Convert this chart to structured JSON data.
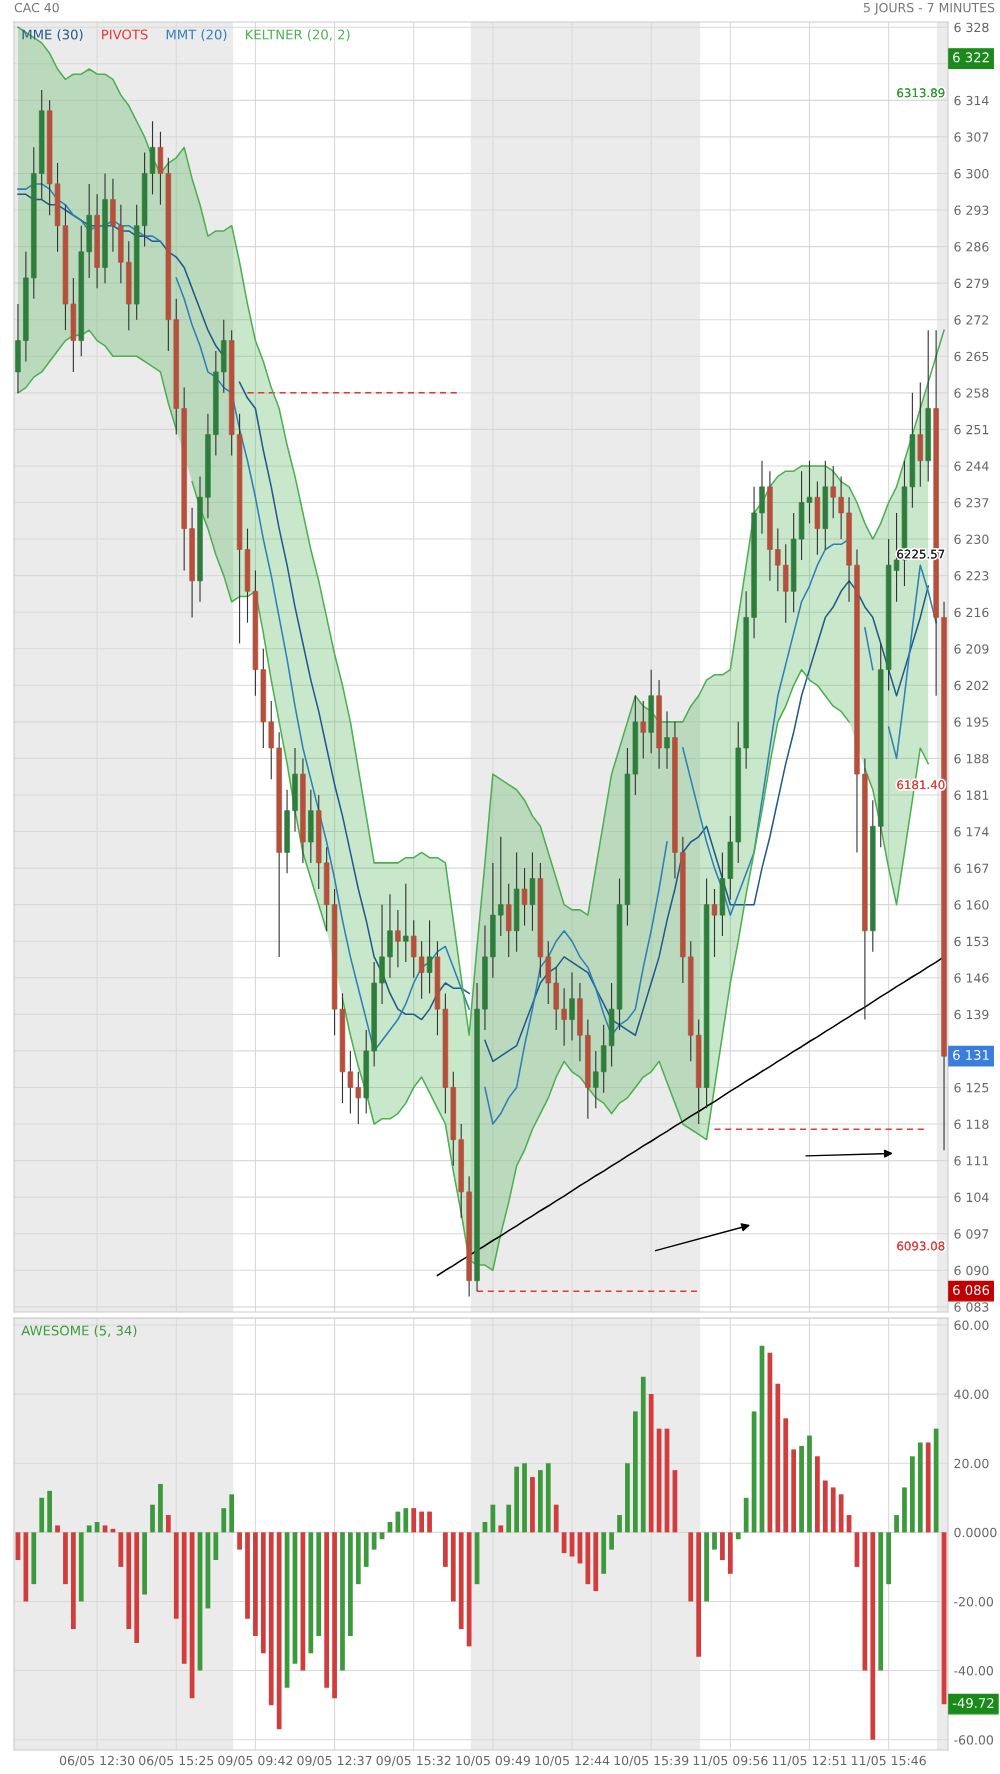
{
  "chart_data": [
    {
      "type": "candlestick",
      "title": "CAC 40",
      "categories": [
        null,
        null,
        null,
        null,
        null,
        null,
        null,
        null,
        null,
        null,
        null,
        null,
        null,
        null,
        null,
        null,
        null,
        null,
        null,
        null,
        null,
        null,
        null,
        null,
        null,
        null,
        null,
        null,
        null,
        null,
        null,
        null,
        null,
        null,
        null,
        null,
        null,
        null,
        null,
        null,
        null,
        null,
        null,
        null,
        null,
        null,
        null,
        null,
        null,
        null,
        null,
        null,
        null,
        null,
        null,
        null,
        null,
        null,
        null,
        null,
        null,
        null,
        null,
        null,
        null,
        null,
        null,
        null,
        null,
        null,
        null,
        null,
        null,
        null,
        null,
        null,
        null,
        null,
        null,
        null,
        null,
        null,
        null,
        null,
        null,
        null,
        null,
        null,
        null,
        null,
        null,
        null,
        null,
        null,
        null,
        null,
        null,
        null,
        null,
        null,
        null,
        null,
        null,
        null,
        null,
        null,
        null,
        null,
        null,
        null,
        null,
        null,
        null,
        null,
        null,
        null,
        null,
        null
      ],
      "ohlc": [
        [
          6262,
          6275,
          6258,
          6268
        ],
        [
          6268,
          6285,
          6264,
          6280
        ],
        [
          6280,
          6305,
          6276,
          6300
        ],
        [
          6300,
          6316,
          6295,
          6312
        ],
        [
          6312,
          6314,
          6292,
          6298
        ],
        [
          6298,
          6302,
          6285,
          6290
        ],
        [
          6290,
          6294,
          6270,
          6275
        ],
        [
          6275,
          6280,
          6262,
          6268
        ],
        [
          6268,
          6290,
          6265,
          6285
        ],
        [
          6285,
          6298,
          6280,
          6292
        ],
        [
          6292,
          6296,
          6278,
          6282
        ],
        [
          6282,
          6300,
          6279,
          6295
        ],
        [
          6295,
          6299,
          6285,
          6290
        ],
        [
          6290,
          6294,
          6279,
          6283
        ],
        [
          6283,
          6287,
          6270,
          6275
        ],
        [
          6275,
          6294,
          6272,
          6290
        ],
        [
          6290,
          6304,
          6286,
          6300
        ],
        [
          6300,
          6310,
          6296,
          6305
        ],
        [
          6305,
          6308,
          6294,
          6300
        ],
        [
          6300,
          6303,
          6266,
          6272
        ],
        [
          6272,
          6276,
          6250,
          6255
        ],
        [
          6255,
          6259,
          6224,
          6232
        ],
        [
          6232,
          6236,
          6215,
          6222
        ],
        [
          6222,
          6242,
          6218,
          6238
        ],
        [
          6238,
          6254,
          6234,
          6250
        ],
        [
          6250,
          6266,
          6246,
          6262
        ],
        [
          6262,
          6272,
          6258,
          6268
        ],
        [
          6268,
          6270,
          6246,
          6250
        ],
        [
          6250,
          6254,
          6210,
          6228
        ],
        [
          6228,
          6232,
          6214,
          6220
        ],
        [
          6220,
          6224,
          6200,
          6205
        ],
        [
          6205,
          6209,
          6190,
          6195
        ],
        [
          6195,
          6199,
          6184,
          6190
        ],
        [
          6190,
          6193,
          6150,
          6170
        ],
        [
          6170,
          6182,
          6166,
          6178
        ],
        [
          6178,
          6190,
          6174,
          6185
        ],
        [
          6185,
          6188,
          6168,
          6172
        ],
        [
          6172,
          6182,
          6168,
          6178
        ],
        [
          6178,
          6181,
          6163,
          6168
        ],
        [
          6168,
          6171,
          6155,
          6160
        ],
        [
          6160,
          6163,
          6135,
          6140
        ],
        [
          6140,
          6143,
          6122,
          6128
        ],
        [
          6128,
          6132,
          6120,
          6125
        ],
        [
          6125,
          6128,
          6118,
          6123
        ],
        [
          6123,
          6136,
          6120,
          6132
        ],
        [
          6132,
          6149,
          6129,
          6145
        ],
        [
          6145,
          6160,
          6141,
          6150
        ],
        [
          6150,
          6162,
          6146,
          6155
        ],
        [
          6155,
          6159,
          6148,
          6153
        ],
        [
          6153,
          6164,
          6149,
          6154
        ],
        [
          6154,
          6157,
          6146,
          6150
        ],
        [
          6150,
          6153,
          6142,
          6147
        ],
        [
          6147,
          6157,
          6143,
          6150
        ],
        [
          6150,
          6153,
          6135,
          6140
        ],
        [
          6140,
          6143,
          6120,
          6125
        ],
        [
          6125,
          6128,
          6110,
          6115
        ],
        [
          6115,
          6118,
          6100,
          6105
        ],
        [
          6105,
          6108,
          6085,
          6088
        ],
        [
          6088,
          6145,
          6086,
          6140
        ],
        [
          6140,
          6156,
          6136,
          6150
        ],
        [
          6150,
          6168,
          6146,
          6158
        ],
        [
          6158,
          6173,
          6154,
          6160
        ],
        [
          6160,
          6164,
          6150,
          6155
        ],
        [
          6155,
          6170,
          6151,
          6163
        ],
        [
          6163,
          6167,
          6156,
          6160
        ],
        [
          6160,
          6170,
          6155,
          6165
        ],
        [
          6165,
          6168,
          6146,
          6150
        ],
        [
          6150,
          6153,
          6141,
          6145
        ],
        [
          6145,
          6148,
          6136,
          6140
        ],
        [
          6140,
          6144,
          6133,
          6138
        ],
        [
          6138,
          6147,
          6134,
          6142
        ],
        [
          6142,
          6145,
          6130,
          6135
        ],
        [
          6135,
          6138,
          6119,
          6125
        ],
        [
          6125,
          6132,
          6121,
          6128
        ],
        [
          6128,
          6137,
          6124,
          6133
        ],
        [
          6133,
          6145,
          6129,
          6140
        ],
        [
          6140,
          6165,
          6136,
          6160
        ],
        [
          6160,
          6190,
          6156,
          6185
        ],
        [
          6185,
          6200,
          6181,
          6195
        ],
        [
          6195,
          6199,
          6188,
          6193
        ],
        [
          6193,
          6205,
          6189,
          6200
        ],
        [
          6200,
          6203,
          6186,
          6190
        ],
        [
          6190,
          6197,
          6186,
          6192
        ],
        [
          6192,
          6195,
          6165,
          6170
        ],
        [
          6170,
          6173,
          6145,
          6150
        ],
        [
          6150,
          6153,
          6130,
          6135
        ],
        [
          6135,
          6138,
          6118,
          6125
        ],
        [
          6125,
          6165,
          6121,
          6160
        ],
        [
          6160,
          6163,
          6150,
          6158
        ],
        [
          6158,
          6170,
          6154,
          6165
        ],
        [
          6165,
          6177,
          6161,
          6172
        ],
        [
          6172,
          6195,
          6168,
          6190
        ],
        [
          6190,
          6220,
          6186,
          6215
        ],
        [
          6215,
          6240,
          6211,
          6235
        ],
        [
          6235,
          6245,
          6231,
          6240
        ],
        [
          6240,
          6243,
          6222,
          6228
        ],
        [
          6228,
          6232,
          6220,
          6225
        ],
        [
          6225,
          6229,
          6214,
          6220
        ],
        [
          6220,
          6235,
          6216,
          6230
        ],
        [
          6230,
          6243,
          6226,
          6237
        ],
        [
          6237,
          6245,
          6233,
          6238
        ],
        [
          6238,
          6241,
          6227,
          6232
        ],
        [
          6232,
          6245,
          6228,
          6240
        ],
        [
          6240,
          6244,
          6234,
          6238
        ],
        [
          6238,
          6242,
          6230,
          6235
        ],
        [
          6235,
          6238,
          6218,
          6225
        ],
        [
          6225,
          6228,
          6170,
          6185
        ],
        [
          6185,
          6188,
          6138,
          6155
        ],
        [
          6155,
          6180,
          6151,
          6175
        ],
        [
          6175,
          6210,
          6171,
          6205
        ],
        [
          6205,
          6230,
          6201,
          6225
        ],
        [
          6224,
          6235,
          6218,
          6226
        ],
        [
          6226,
          6245,
          6221,
          6240
        ],
        [
          6240,
          6258,
          6236,
          6250
        ],
        [
          6250,
          6260,
          6240,
          6245
        ],
        [
          6245,
          6270,
          6241,
          6255
        ],
        [
          6255,
          6270,
          6200,
          6215
        ],
        [
          6215,
          6218,
          6113,
          6131
        ]
      ],
      "colors": [
        "#2e7d3c",
        "#2e7d3c",
        "#2e7d3c",
        "#2e7d3c",
        "#b4503c",
        "#b4503c",
        "#b4503c",
        "#b4503c",
        "#2e7d3c",
        "#2e7d3c",
        "#b4503c",
        "#2e7d3c",
        "#b4503c",
        "#b4503c",
        "#b4503c",
        "#2e7d3c",
        "#2e7d3c",
        "#2e7d3c",
        "#b4503c",
        "#b4503c",
        "#b4503c",
        "#b4503c",
        "#b4503c",
        "#2e7d3c",
        "#2e7d3c",
        "#2e7d3c",
        "#2e7d3c",
        "#b4503c",
        "#b4503c",
        "#b4503c",
        "#b4503c",
        "#b4503c",
        "#b4503c",
        "#b4503c",
        "#2e7d3c",
        "#2e7d3c",
        "#b4503c",
        "#2e7d3c",
        "#b4503c",
        "#b4503c",
        "#b4503c",
        "#b4503c",
        "#b4503c",
        "#b4503c",
        "#2e7d3c",
        "#2e7d3c",
        "#2e7d3c",
        "#2e7d3c",
        "#b4503c",
        "#2e7d3c",
        "#b4503c",
        "#b4503c",
        "#2e7d3c",
        "#b4503c",
        "#b4503c",
        "#b4503c",
        "#b4503c",
        "#b4503c",
        "#2e7d3c",
        "#2e7d3c",
        "#2e7d3c",
        "#2e7d3c",
        "#b4503c",
        "#2e7d3c",
        "#b4503c",
        "#2e7d3c",
        "#b4503c",
        "#b4503c",
        "#b4503c",
        "#b4503c",
        "#2e7d3c",
        "#b4503c",
        "#b4503c",
        "#2e7d3c",
        "#2e7d3c",
        "#2e7d3c",
        "#2e7d3c",
        "#2e7d3c",
        "#2e7d3c",
        "#b4503c",
        "#2e7d3c",
        "#b4503c",
        "#2e7d3c",
        "#b4503c",
        "#b4503c",
        "#b4503c",
        "#b4503c",
        "#2e7d3c",
        "#b4503c",
        "#2e7d3c",
        "#2e7d3c",
        "#2e7d3c",
        "#2e7d3c",
        "#2e7d3c",
        "#2e7d3c",
        "#b4503c",
        "#b4503c",
        "#b4503c",
        "#2e7d3c",
        "#2e7d3c",
        "#2e7d3c",
        "#b4503c",
        "#2e7d3c",
        "#b4503c",
        "#b4503c",
        "#b4503c",
        "#b4503c",
        "#b4503c",
        "#2e7d3c",
        "#2e7d3c",
        "#2e7d3c",
        "#2e7d3c",
        "#2e7d3c",
        "#2e7d3c",
        "#b4503c",
        "#2e7d3c",
        "#b4503c",
        "#b4503c"
      ],
      "series": [
        {
          "name": "MME (30)",
          "type": "line",
          "color": "#1f5a8c",
          "values": [
            6296,
            6296,
            6295,
            6295,
            6294,
            6294,
            6293,
            6292,
            6291,
            6290,
            6290,
            6290,
            6290,
            6289,
            6289,
            6288,
            6288,
            6287,
            6287,
            6285,
            6284,
            6282,
            6278,
            6274,
            6270,
            6267,
            6265,
            null,
            6260,
            6257,
            6255,
            6247,
            6240,
            6232,
            6225,
            6217,
            6210,
            6203,
            6197,
            6190,
            6183,
            6177,
            6170,
            6163,
            6157,
            6150,
            6147,
            6143,
            6140,
            6139,
            6139,
            6138,
            6140,
            6143,
            6145,
            6144,
            6144,
            6143,
            null,
            6134,
            6130,
            6131,
            6132,
            6133,
            6137,
            6141,
            6145,
            6147,
            6148,
            6150,
            6149,
            6148,
            6147,
            6144,
            6141,
            6138,
            6137,
            6136,
            6135,
            6140,
            6145,
            6150,
            6157,
            6163,
            6170,
            6172,
            6173,
            6175,
            6170,
            6165,
            6160,
            6160,
            6160,
            6160,
            6167,
            6173,
            6180,
            6187,
            6193,
            6200,
            6205,
            6210,
            6215,
            6217,
            6220,
            6222,
            6220,
            6217,
            6215,
            6210,
            6205,
            6200,
            6205,
            6210,
            6215,
            6221,
            null,
            null
          ]
        },
        {
          "name": "PIVOTS",
          "type": "line",
          "color": "#e53935",
          "line_style": "dashed",
          "values": [
            null,
            null,
            null,
            null,
            null,
            null,
            null,
            null,
            null,
            null,
            null,
            null,
            null,
            null,
            null,
            null,
            null,
            null,
            null,
            null,
            null,
            null,
            null,
            null,
            null,
            null,
            null,
            null,
            null,
            6258,
            6258,
            6258,
            6258,
            6258,
            6258,
            6258,
            6258,
            6258,
            6258,
            6258,
            6258,
            6258,
            6258,
            6258,
            6258,
            6258,
            6258,
            6258,
            6258,
            6258,
            6258,
            6258,
            6258,
            6258,
            6258,
            6258,
            6258,
            null,
            6086,
            6086,
            6086,
            6086,
            6086,
            6086,
            6086,
            6086,
            6086,
            6086,
            6086,
            6086,
            6086,
            6086,
            6086,
            6086,
            6086,
            6086,
            6086,
            6086,
            6086,
            6086,
            6086,
            6086,
            6086,
            6086,
            6086,
            6086,
            6086,
            null,
            6117,
            6117,
            6117,
            6117,
            6117,
            6117,
            6117,
            6117,
            6117,
            6117,
            6117,
            6117,
            6117,
            6117,
            6117,
            6117,
            6117,
            6117,
            6117,
            6117,
            6117,
            6117,
            6117,
            6117,
            6117,
            6117,
            6117,
            6117,
            null,
            null
          ]
        },
        {
          "name": "MMT (20)",
          "type": "line",
          "color": "#2c7fb8",
          "values": [
            6297,
            6297,
            6298,
            6298,
            6297,
            6295,
            6294,
            6292,
            6291,
            6289,
            6290,
            6290,
            6291,
            6290,
            6290,
            6289,
            6288,
            6288,
            6287,
            null,
            6280,
            6276,
            6271,
            6267,
            6262,
            6261,
            6259,
            6258,
            6251,
            6245,
            6238,
            6230,
            6223,
            6215,
            6207,
            6198,
            6190,
            6184,
            6178,
            6172,
            6165,
            6157,
            6150,
            6144,
            6138,
            6132,
            6134,
            6136,
            6138,
            6141,
            6145,
            6148,
            6149,
            6151,
            6152,
            6148,
            6144,
            6140,
            null,
            6125,
            6118,
            6120,
            6123,
            6125,
            6133,
            6140,
            6148,
            6150,
            6153,
            6155,
            6153,
            6150,
            6148,
            6144,
            6139,
            6135,
            6137,
            6138,
            6140,
            6148,
            6155,
            6163,
            6172,
            null,
            6190,
            6184,
            6178,
            6172,
            6167,
            6163,
            6158,
            6162,
            6166,
            6170,
            6180,
            6190,
            6200,
            6206,
            6212,
            6218,
            6221,
            6225,
            6228,
            6229,
            6229,
            6230,
            null,
            6213,
            6205,
            null,
            6194,
            6188,
            6200,
            6213,
            6225,
            6220,
            6214,
            null
          ]
        },
        {
          "name": "KELTNER (20, 2)",
          "type": "line",
          "color": "#4caf50",
          "values": [
            6328,
            6327,
            6326,
            6325,
            6323,
            6320,
            6318,
            6319,
            6319,
            6320,
            6319,
            6319,
            6318,
            6315,
            6313,
            6310,
            6307,
            6303,
            6300,
            6302,
            6303,
            6305,
            6299,
            6294,
            6288,
            6289,
            6289,
            6290,
            6283,
            6275,
            6268,
            6264,
            6259,
            6255,
            6248,
            6242,
            6235,
            6228,
            6222,
            6215,
            6208,
            6202,
            6195,
            6186,
            6177,
            6168,
            6168,
            6168,
            6168,
            6169,
            6169,
            6170,
            6169,
            6169,
            6168,
            6157,
            6146,
            6135,
            6152,
            6168,
            6185,
            6184,
            6183,
            6182,
            6180,
            6177,
            6175,
            6170,
            6165,
            6160,
            6159,
            6159,
            6158,
            6167,
            6176,
            6185,
            6190,
            6195,
            6200,
            6198,
            6197,
            6195,
            6195,
            6195,
            6195,
            6198,
            6200,
            6203,
            6204,
            6204,
            6205,
            6215,
            6225,
            6235,
            6237,
            6240,
            6242,
            6243,
            6243,
            6244,
            6244,
            6244,
            6244,
            6243,
            6241,
            6240,
            6237,
            6233,
            6230,
            6233,
            6237,
            6240,
            6245,
            6250,
            6255,
            6260,
            6265,
            6270
          ]
        },
        {
          "type": "line",
          "color": "#4caf50",
          "values": [
            6258,
            6259,
            6261,
            6262,
            6264,
            6266,
            6268,
            6269,
            6269,
            6270,
            6268,
            6267,
            6265,
            6265,
            6265,
            6265,
            6264,
            6263,
            6262,
            6256,
            6251,
            null,
            6241,
            6236,
            6232,
            6227,
            6223,
            6218,
            6219,
            6219,
            6220,
            6212,
            6203,
            6195,
            6187,
            6178,
            6170,
            6165,
            6160,
            6155,
            null,
            6142,
            6135,
            6129,
            6124,
            6118,
            6119,
            6119,
            6120,
            6122,
            6125,
            6127,
            6124,
            6121,
            6118,
            6109,
            6101,
            6092,
            6091,
            6091,
            6090,
            6097,
            6103,
            6110,
            6113,
            6117,
            6120,
            6123,
            6127,
            6130,
            6128,
            6127,
            6125,
            6123,
            6122,
            6120,
            6122,
            6123,
            6125,
            6127,
            6128,
            6130,
            6126,
            6122,
            6118,
            6117,
            6116,
            6115,
            6125,
            6135,
            6145,
            6153,
            6162,
            6170,
            6178,
            6187,
            6195,
            6198,
            6202,
            6205,
            6203,
            6202,
            6200,
            6198,
            6197,
            6195,
            null,
            6186,
            6182,
            6175,
            6167,
            6160,
            6170,
            6180,
            6190,
            6187,
            null,
            null
          ]
        },
        {
          "type": "line",
          "color": "#000000",
          "values": [
            null,
            null,
            null,
            null,
            null,
            null,
            null,
            null,
            null,
            null,
            null,
            null,
            null,
            null,
            null,
            null,
            null,
            null,
            null,
            null,
            null,
            null,
            null,
            null,
            null,
            null,
            null,
            null,
            null,
            null,
            null,
            null,
            null,
            null,
            null,
            null,
            null,
            null,
            null,
            null,
            null,
            null,
            null,
            null,
            null,
            null,
            null,
            null,
            null,
            null,
            null,
            null,
            null,
            6089.0,
            6090.0,
            6090.9,
            6091.9,
            6092.8,
            6093.8,
            6094.7,
            6095.7,
            6096.6,
            6097.6,
            6098.5,
            6099.5,
            6100.4,
            6101.4,
            6102.3,
            6103.3,
            6104.2,
            6105.2,
            6106.2,
            6107.1,
            6108.1,
            6109.0,
            6110.0,
            6110.9,
            6111.9,
            6112.8,
            6113.8,
            6114.7,
            6115.7,
            6116.6,
            6117.6,
            6118.5,
            6119.5,
            6120.4,
            6121.4,
            6122.3,
            6123.3,
            6124.3,
            6125.2,
            6126.2,
            6127.1,
            6128.1,
            6129.0,
            6130.0,
            6130.9,
            6131.9,
            6132.8,
            6133.8,
            6134.7,
            6135.7,
            6136.6,
            6137.6,
            6138.5,
            6139.5,
            6140.4,
            6141.4,
            6142.4,
            6143.3,
            6144.3,
            6145.2,
            6146.2,
            6147.1,
            6148.1,
            6149.0,
            6150.0
          ]
        }
      ],
      "ylim": [
        6082,
        6329
      ],
      "yticks": [
        {
          "value": 6083,
          "label": "6 083"
        },
        {
          "value": 6090,
          "label": "6 090"
        },
        {
          "value": 6097,
          "label": "6 097"
        },
        {
          "value": 6104,
          "label": "6 104"
        },
        {
          "value": 6111,
          "label": "6 111"
        },
        {
          "value": 6118,
          "label": "6 118"
        },
        {
          "value": 6125,
          "label": "6 125"
        },
        {
          "value": 6132,
          "label": null
        },
        {
          "value": 6139,
          "label": "6 139"
        },
        {
          "value": 6146,
          "label": "6 146"
        },
        {
          "value": 6153,
          "label": "6 153"
        },
        {
          "value": 6160,
          "label": "6 160"
        },
        {
          "value": 6167,
          "label": "6 167"
        },
        {
          "value": 6174,
          "label": "6 174"
        },
        {
          "value": 6181,
          "label": "6 181"
        },
        {
          "value": 6188,
          "label": "6 188"
        },
        {
          "value": 6195,
          "label": "6 195"
        },
        {
          "value": 6202,
          "label": "6 202"
        },
        {
          "value": 6209,
          "label": "6 209"
        },
        {
          "value": 6216,
          "label": "6 216"
        },
        {
          "value": 6223,
          "label": "6 223"
        },
        {
          "value": 6230,
          "label": "6 230"
        },
        {
          "value": 6237,
          "label": "6 237"
        },
        {
          "value": 6244,
          "label": "6 244"
        },
        {
          "value": 6251,
          "label": "6 251"
        },
        {
          "value": 6258,
          "label": "6 258"
        },
        {
          "value": 6265,
          "label": "6 265"
        },
        {
          "value": 6272,
          "label": "6 272"
        },
        {
          "value": 6279,
          "label": "6 279"
        },
        {
          "value": 6286,
          "label": "6 286"
        },
        {
          "value": 6293,
          "label": "6 293"
        },
        {
          "value": 6300,
          "label": "6 300"
        },
        {
          "value": 6307,
          "label": "6 307"
        },
        {
          "value": 6314,
          "label": "6 314"
        },
        {
          "value": 6321,
          "label": null
        },
        {
          "value": 6328,
          "label": "6 328"
        }
      ],
      "annotations": [
        "5 JOURS - 7 MINUTES",
        "6 322",
        "6313.89",
        {
          "text": "6225.57",
          "y": 6225.57
        },
        "6181.40",
        "6 131",
        "6093.08",
        "6 086"
      ],
      "grid": true,
      "legend": "top left",
      "tick_labels": "y"
    },
    {
      "type": "bar",
      "categories": [
        null,
        null,
        null,
        null,
        null,
        null,
        null,
        null,
        null,
        null,
        "06/05 12:30",
        null,
        null,
        null,
        null,
        null,
        null,
        null,
        null,
        null,
        "06/05 15:25",
        null,
        null,
        null,
        null,
        null,
        null,
        null,
        null,
        null,
        "09/05 09:42",
        null,
        null,
        null,
        null,
        null,
        null,
        null,
        null,
        null,
        "09/05 12:37",
        null,
        null,
        null,
        null,
        null,
        null,
        null,
        null,
        null,
        "09/05 15:32",
        null,
        null,
        null,
        null,
        null,
        null,
        null,
        null,
        null,
        "10/05 09:49",
        null,
        null,
        null,
        null,
        null,
        null,
        null,
        null,
        null,
        "10/05 12:44",
        null,
        null,
        null,
        null,
        null,
        null,
        null,
        null,
        null,
        "10/05 15:39",
        null,
        null,
        null,
        null,
        null,
        null,
        null,
        null,
        null,
        "11/05 09:56",
        null,
        null,
        null,
        null,
        null,
        null,
        null,
        null,
        null,
        "11/05 12:51",
        null,
        null,
        null,
        null,
        null,
        null,
        null,
        null,
        null,
        "11/05 15:46",
        null,
        null,
        null,
        null,
        null,
        null,
        null
      ],
      "series": [
        {
          "name": "AWESOME (5, 34)",
          "color": "#3c9a3c",
          "values": [
            -8,
            -20,
            -15,
            10,
            12,
            2,
            -15,
            -28,
            -20,
            2,
            3,
            2,
            1,
            -10,
            -28,
            -32,
            -18,
            8,
            14,
            5,
            -25,
            -38,
            -48,
            -40,
            -22,
            -8,
            7,
            11,
            -5,
            -25,
            -30,
            -35,
            -50,
            -57,
            -45,
            -38,
            -40,
            -35,
            -30,
            -45,
            -48,
            -40,
            -30,
            -15,
            -10,
            -5,
            -2,
            3,
            6,
            7,
            7,
            6,
            6,
            0,
            -10,
            -20,
            -28,
            -33,
            -15,
            3,
            8,
            2,
            8,
            19,
            20,
            16,
            18,
            20,
            8,
            -6,
            -7,
            -9,
            -15,
            -17,
            -12,
            -5,
            5,
            20,
            35,
            45,
            40,
            30,
            30,
            18,
            0,
            -20,
            -36,
            -20,
            -5,
            -8,
            -12,
            -2,
            10,
            35,
            54,
            52,
            43,
            33,
            24,
            25,
            28,
            22,
            15,
            13,
            11,
            5,
            -10,
            -40,
            -60,
            -40,
            -15,
            5,
            13,
            22,
            26,
            26,
            30,
            -49.72
          ],
          "colors": [
            "#d13c3c",
            "#d13c3c",
            "#3c9a3c",
            "#3c9a3c",
            "#3c9a3c",
            "#d13c3c",
            "#d13c3c",
            "#d13c3c",
            "#3c9a3c",
            "#3c9a3c",
            "#3c9a3c",
            "#d13c3c",
            "#d13c3c",
            "#d13c3c",
            "#d13c3c",
            "#d13c3c",
            "#3c9a3c",
            "#3c9a3c",
            "#3c9a3c",
            "#d13c3c",
            "#d13c3c",
            "#d13c3c",
            "#d13c3c",
            "#3c9a3c",
            "#3c9a3c",
            "#3c9a3c",
            "#3c9a3c",
            "#3c9a3c",
            "#d13c3c",
            "#d13c3c",
            "#d13c3c",
            "#d13c3c",
            "#d13c3c",
            "#d13c3c",
            "#3c9a3c",
            "#3c9a3c",
            "#d13c3c",
            "#3c9a3c",
            "#3c9a3c",
            "#d13c3c",
            "#d13c3c",
            "#3c9a3c",
            "#3c9a3c",
            "#3c9a3c",
            "#3c9a3c",
            "#3c9a3c",
            "#3c9a3c",
            "#3c9a3c",
            "#3c9a3c",
            "#3c9a3c",
            "#d13c3c",
            "#d13c3c",
            "#d13c3c",
            "#d13c3c",
            "#d13c3c",
            "#d13c3c",
            "#d13c3c",
            "#d13c3c",
            "#3c9a3c",
            "#3c9a3c",
            "#3c9a3c",
            "#d13c3c",
            "#3c9a3c",
            "#3c9a3c",
            "#3c9a3c",
            "#d13c3c",
            "#3c9a3c",
            "#3c9a3c",
            "#d13c3c",
            "#d13c3c",
            "#d13c3c",
            "#d13c3c",
            "#d13c3c",
            "#d13c3c",
            "#3c9a3c",
            "#3c9a3c",
            "#3c9a3c",
            "#3c9a3c",
            "#3c9a3c",
            "#3c9a3c",
            "#d13c3c",
            "#d13c3c",
            "#d13c3c",
            "#d13c3c",
            "#d13c3c",
            "#d13c3c",
            "#d13c3c",
            "#3c9a3c",
            "#3c9a3c",
            "#d13c3c",
            "#d13c3c",
            "#3c9a3c",
            "#3c9a3c",
            "#3c9a3c",
            "#3c9a3c",
            "#d13c3c",
            "#d13c3c",
            "#d13c3c",
            "#d13c3c",
            "#3c9a3c",
            "#3c9a3c",
            "#d13c3c",
            "#d13c3c",
            "#d13c3c",
            "#d13c3c",
            "#d13c3c",
            "#d13c3c",
            "#d13c3c",
            "#d13c3c",
            "#3c9a3c",
            "#3c9a3c",
            "#3c9a3c",
            "#3c9a3c",
            "#3c9a3c",
            "#3c9a3c",
            "#d13c3c",
            "#3c9a3c",
            "#d13c3c"
          ]
        }
      ],
      "ylim": [
        -63,
        62
      ],
      "yticks": [
        {
          "value": -60,
          "label": "-60.00"
        },
        {
          "value": -40,
          "label": "-40.00"
        },
        {
          "value": -20,
          "label": "-20.00"
        },
        {
          "value": 0,
          "label": "0.0000"
        },
        {
          "value": 20,
          "label": "20.00"
        },
        {
          "value": 40,
          "label": "40.00"
        },
        {
          "value": 60,
          "label": "60.00"
        }
      ],
      "annotations": [
        "-49.72"
      ],
      "grid": true,
      "legend": "top left"
    }
  ]
}
